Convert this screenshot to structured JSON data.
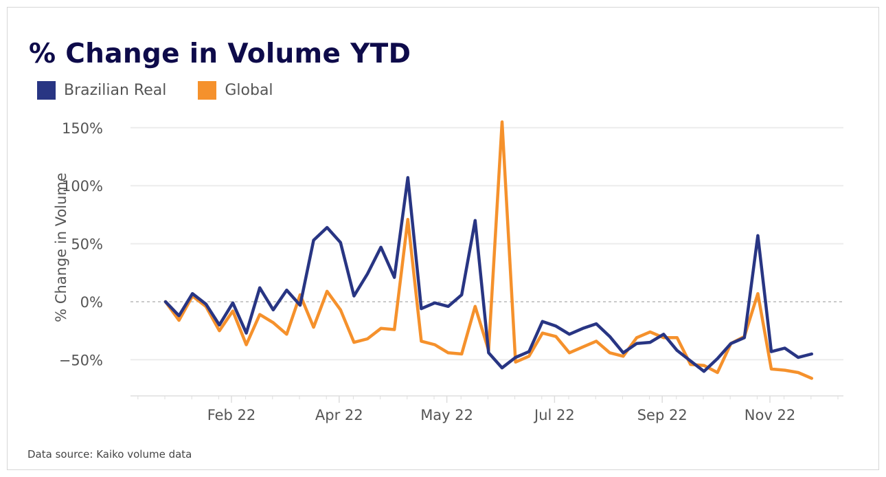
{
  "chart_data": {
    "type": "line",
    "title": "% Change in Volume YTD",
    "ylabel": "% Change in Volume",
    "xlabel": "",
    "x_ticks": [
      "Feb 22",
      "Apr 22",
      "May 22",
      "Jul 22",
      "Sep 22",
      "Nov 22"
    ],
    "y_ticks": [
      -50,
      0,
      50,
      100,
      150
    ],
    "y_tick_labels": [
      "−50%",
      "0%",
      "50%",
      "100%",
      "150%"
    ],
    "ylim": [
      -80,
      165
    ],
    "grid": true,
    "zero_line": "dashed",
    "legend_placement": "top-left",
    "series": [
      {
        "name": "Brazilian Real",
        "color": "#283583",
        "values": [
          0,
          -12,
          7,
          -2,
          -20,
          -1,
          -27,
          12,
          -7,
          10,
          -3,
          53,
          64,
          51,
          5,
          24,
          47,
          21,
          107,
          -6,
          -1,
          -4,
          6,
          70,
          -44,
          -57,
          -48,
          -43,
          -17,
          -21,
          -28,
          -23,
          -19,
          -30,
          -44,
          -36,
          -35,
          -28,
          -42,
          -51,
          -60,
          -49,
          -36,
          -31,
          57,
          -43,
          -40,
          -48,
          -45
        ]
      },
      {
        "name": "Global",
        "color": "#f5912c",
        "values": [
          0,
          -16,
          5,
          -4,
          -25,
          -8,
          -37,
          -11,
          -18,
          -28,
          6,
          -22,
          9,
          -7,
          -35,
          -32,
          -23,
          -24,
          71,
          -34,
          -37,
          -44,
          -45,
          -4,
          -42,
          155,
          -52,
          -47,
          -27,
          -30,
          -44,
          -39,
          -34,
          -44,
          -47,
          -31,
          -26,
          -31,
          -31,
          -54,
          -55,
          -61,
          -36,
          -30,
          7,
          -58,
          -59,
          -61,
          -66
        ]
      }
    ]
  },
  "source": "Data source: Kaiko volume data"
}
